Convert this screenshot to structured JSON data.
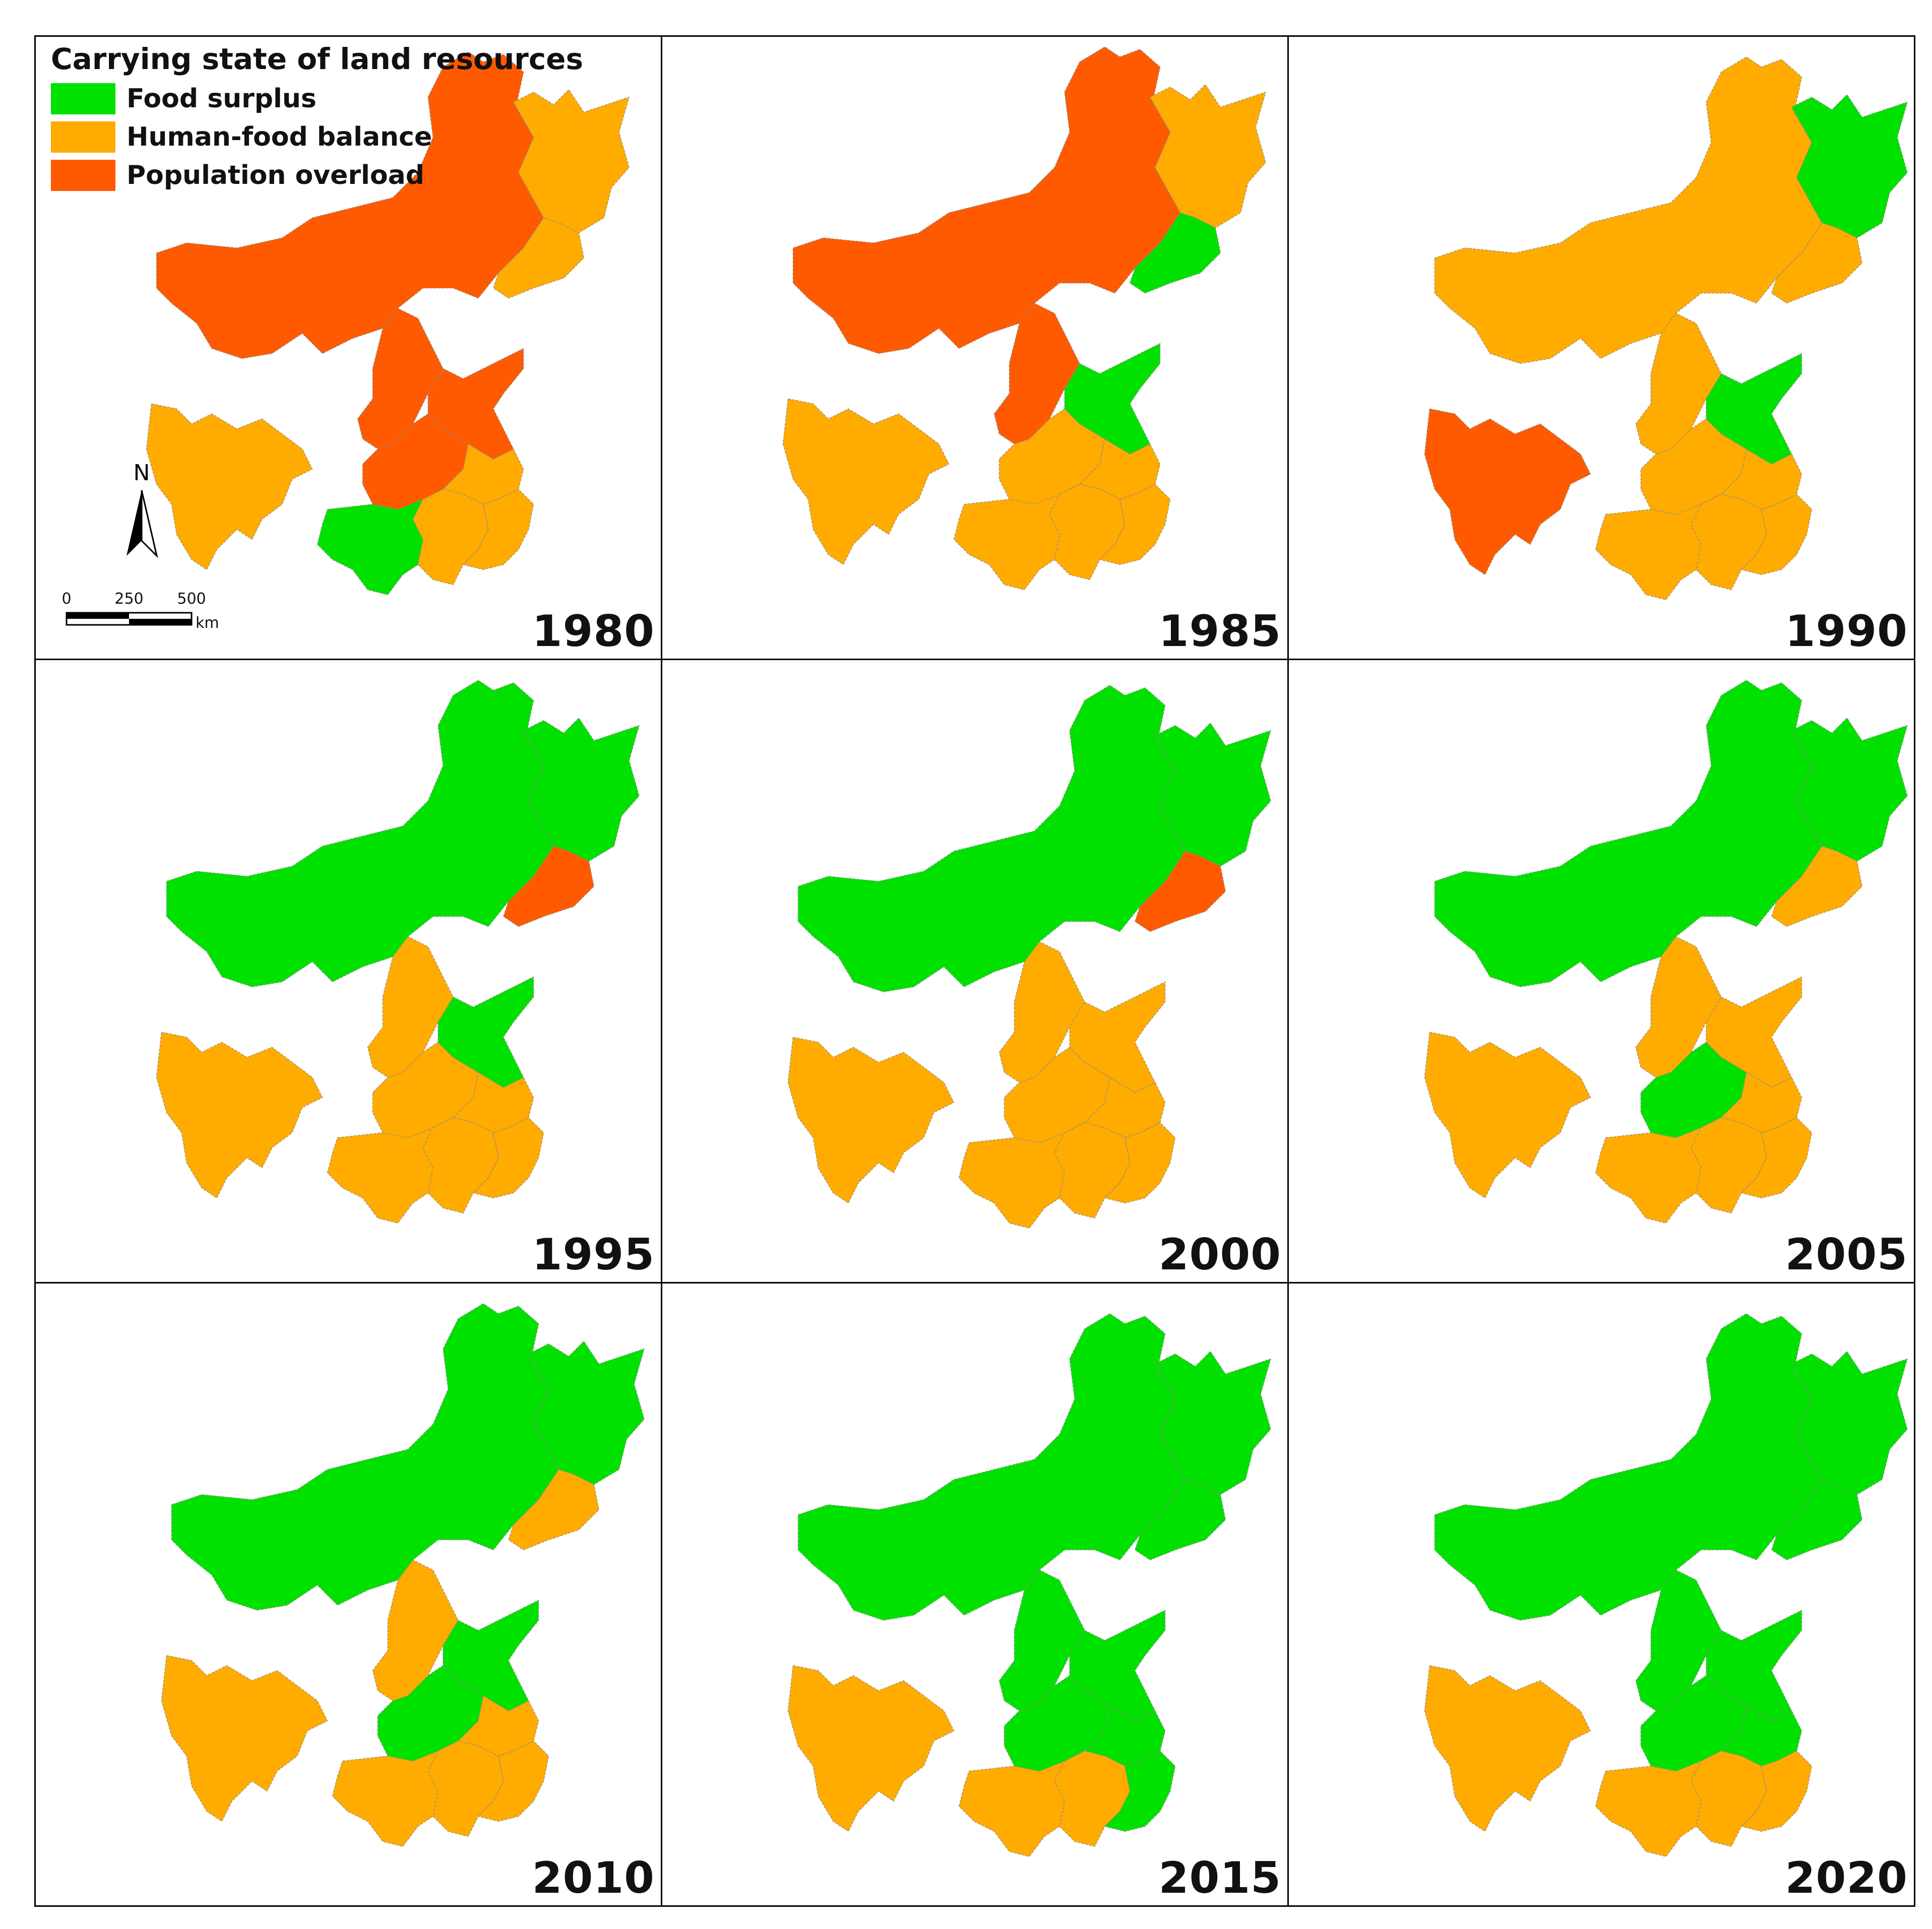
{
  "legend": {
    "title": "Carrying state of land resources",
    "items": [
      {
        "key": "surplus",
        "label": "Food surplus",
        "color": "#00e100"
      },
      {
        "key": "balance",
        "label": "Human-food balance",
        "color": "#ffab00"
      },
      {
        "key": "overload",
        "label": "Population overload",
        "color": "#ff5a00"
      }
    ]
  },
  "compass": {
    "label": "N"
  },
  "scale": {
    "ticks": [
      "0",
      "250",
      "500"
    ],
    "unit": "km"
  },
  "panels": [
    {
      "year": "1980",
      "regions": {
        "north": "overload",
        "northeast": "balance",
        "ne_mid": "balance",
        "central_north": "overload",
        "east_coast": "overload",
        "central_south_a": "overload",
        "central_south_b": "balance",
        "east_lower": "balance",
        "south_left": "surplus",
        "south_right": "balance",
        "sichuan": "balance"
      }
    },
    {
      "year": "1985",
      "regions": {
        "north": "overload",
        "northeast": "balance",
        "ne_mid": "surplus",
        "central_north": "overload",
        "east_coast": "surplus",
        "central_south_a": "balance",
        "central_south_b": "balance",
        "east_lower": "balance",
        "south_left": "balance",
        "south_right": "balance",
        "sichuan": "balance"
      }
    },
    {
      "year": "1990",
      "regions": {
        "north": "balance",
        "northeast": "surplus",
        "ne_mid": "balance",
        "central_north": "balance",
        "east_coast": "surplus",
        "central_south_a": "balance",
        "central_south_b": "balance",
        "east_lower": "balance",
        "south_left": "balance",
        "south_right": "balance",
        "sichuan": "overload"
      }
    },
    {
      "year": "1995",
      "regions": {
        "north": "surplus",
        "northeast": "surplus",
        "ne_mid": "overload",
        "central_north": "balance",
        "east_coast": "surplus",
        "central_south_a": "balance",
        "central_south_b": "balance",
        "east_lower": "balance",
        "south_left": "balance",
        "south_right": "balance",
        "sichuan": "balance"
      }
    },
    {
      "year": "2000",
      "regions": {
        "north": "surplus",
        "northeast": "surplus",
        "ne_mid": "overload",
        "central_north": "balance",
        "east_coast": "balance",
        "central_south_a": "balance",
        "central_south_b": "balance",
        "east_lower": "balance",
        "south_left": "balance",
        "south_right": "balance",
        "sichuan": "balance"
      }
    },
    {
      "year": "2005",
      "regions": {
        "north": "surplus",
        "northeast": "surplus",
        "ne_mid": "balance",
        "central_north": "balance",
        "east_coast": "balance",
        "central_south_a": "surplus",
        "central_south_b": "balance",
        "east_lower": "balance",
        "south_left": "balance",
        "south_right": "balance",
        "sichuan": "balance"
      }
    },
    {
      "year": "2010",
      "regions": {
        "north": "surplus",
        "northeast": "surplus",
        "ne_mid": "balance",
        "central_north": "balance",
        "east_coast": "surplus",
        "central_south_a": "surplus",
        "central_south_b": "balance",
        "east_lower": "balance",
        "south_left": "balance",
        "south_right": "balance",
        "sichuan": "balance"
      }
    },
    {
      "year": "2015",
      "regions": {
        "north": "surplus",
        "northeast": "surplus",
        "ne_mid": "surplus",
        "central_north": "surplus",
        "east_coast": "surplus",
        "central_south_a": "surplus",
        "central_south_b": "surplus",
        "east_lower": "balance",
        "south_left": "balance",
        "south_right": "surplus",
        "sichuan": "balance"
      }
    },
    {
      "year": "2020",
      "regions": {
        "north": "surplus",
        "northeast": "surplus",
        "ne_mid": "surplus",
        "central_north": "surplus",
        "east_coast": "surplus",
        "central_south_a": "surplus",
        "central_south_b": "surplus",
        "east_lower": "balance",
        "south_left": "balance",
        "south_right": "balance",
        "sichuan": "balance"
      }
    }
  ]
}
